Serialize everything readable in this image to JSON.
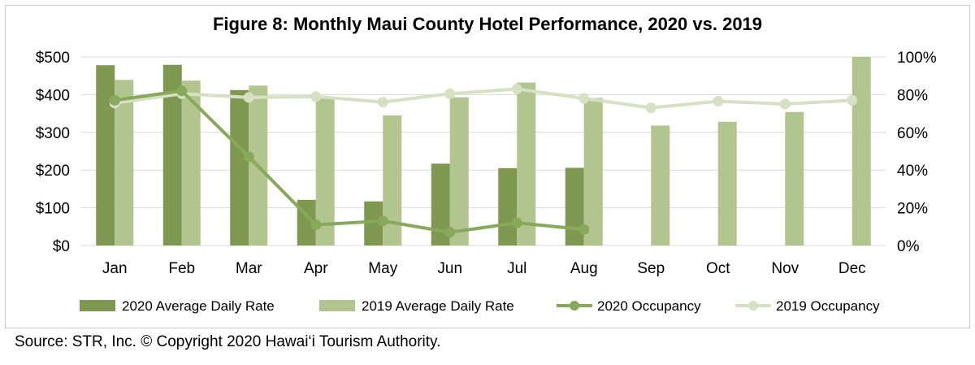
{
  "source": "Source: STR, Inc. © Copyright 2020 Hawai‘i Tourism Authority.",
  "colors": {
    "adr_2020": "#7f9850",
    "adr_2019": "#b3c58e",
    "occ_2020": "#89a95a",
    "occ_2019": "#d6e1c4",
    "grid": "#d9d9d9"
  },
  "chart_data": {
    "type": "bar",
    "title": "Figure 8: Monthly Maui County Hotel Performance, 2020 vs. 2019",
    "categories": [
      "Jan",
      "Feb",
      "Mar",
      "Apr",
      "May",
      "Jun",
      "Jul",
      "Aug",
      "Sep",
      "Oct",
      "Nov",
      "Dec"
    ],
    "y_left": {
      "ylim": [
        0,
        500
      ],
      "ticks": [
        0,
        100,
        200,
        300,
        400,
        500
      ],
      "tick_labels": [
        "$0",
        "$100",
        "$200",
        "$300",
        "$400",
        "$500"
      ]
    },
    "y_right": {
      "ylim": [
        0,
        100
      ],
      "ticks": [
        0,
        20,
        40,
        60,
        80,
        100
      ],
      "tick_labels": [
        "0%",
        "20%",
        "40%",
        "60%",
        "80%",
        "100%"
      ]
    },
    "grid": true,
    "legend_position": "bottom",
    "series": [
      {
        "name": "2020 Average Daily Rate",
        "kind": "bar",
        "axis": "left",
        "values": [
          478,
          479,
          412,
          121,
          117,
          217,
          205,
          206,
          null,
          null,
          null,
          null
        ]
      },
      {
        "name": "2019 Average Daily Rate",
        "kind": "bar",
        "axis": "left",
        "values": [
          439,
          437,
          424,
          393,
          345,
          393,
          432,
          391,
          318,
          328,
          354,
          500
        ]
      },
      {
        "name": "2020 Occupancy",
        "kind": "line",
        "axis": "right",
        "values": [
          77,
          82,
          47,
          11,
          13,
          7,
          12,
          8.5,
          null,
          null,
          null,
          null
        ]
      },
      {
        "name": "2019 Occupancy",
        "kind": "line",
        "axis": "right",
        "values": [
          75.5,
          80.5,
          78.5,
          79,
          76,
          80.5,
          83,
          78,
          73,
          76.5,
          75,
          77
        ]
      }
    ]
  }
}
